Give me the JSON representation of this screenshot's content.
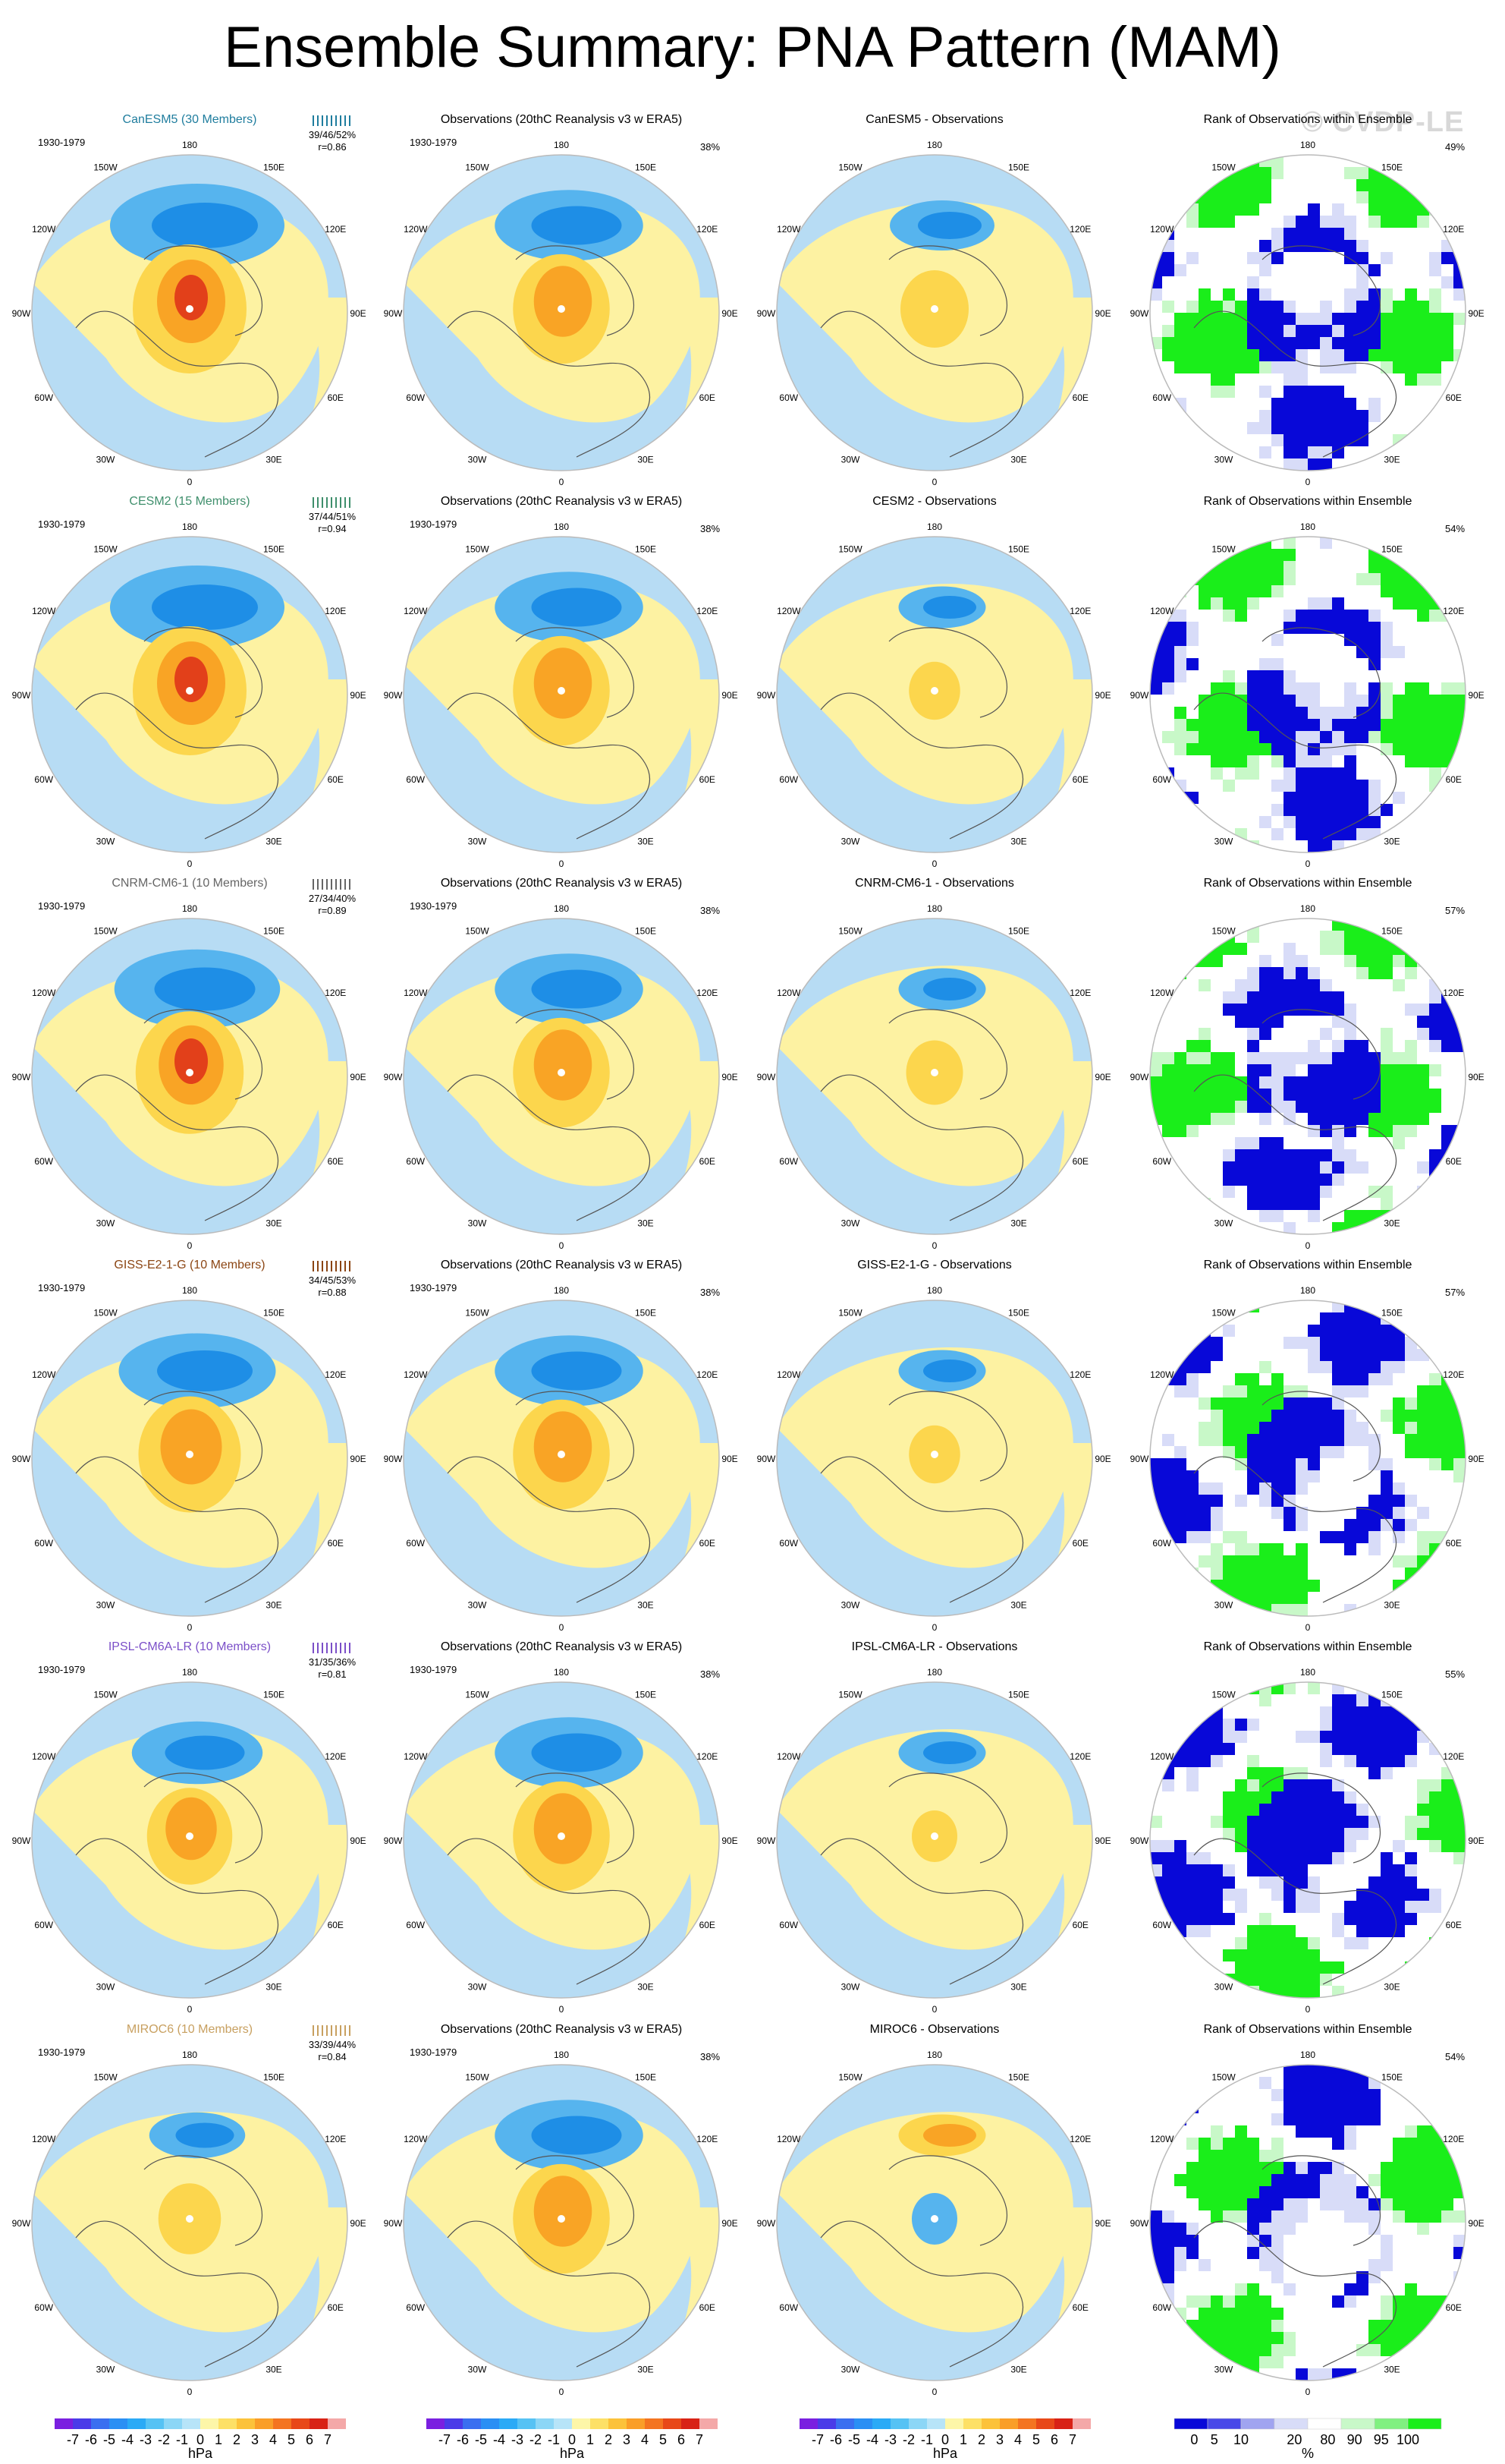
{
  "title": "Ensemble Summary: PNA Pattern (MAM)",
  "watermark": "© CVDP-LE",
  "period": "1930-1979",
  "colors": {
    "blue_dark": "#1e8ee6",
    "blue_mid": "#56b4ee",
    "blue_light": "#b7dcf4",
    "yellow_light": "#fdf2a2",
    "yellow_mid": "#fcd64d",
    "orange": "#f9a425",
    "orange_red": "#f2701e",
    "red": "#e2401a",
    "rank_blue": "#0808d8",
    "rank_lightblue": "#d8dcf8",
    "rank_green": "#1aee1a",
    "rank_lightgreen": "#c8f8c8",
    "map_border": "#bbbbbb"
  },
  "longitude_labels": [
    "180",
    "150E",
    "120E",
    "90E",
    "60E",
    "30E",
    "0",
    "30W",
    "60W",
    "90W",
    "120W",
    "150W"
  ],
  "columns": [
    {
      "key": "model"
    },
    {
      "key": "observations"
    },
    {
      "key": "difference"
    },
    {
      "key": "rank"
    }
  ],
  "chart_data": {
    "type": "map-panels",
    "title": "Ensemble Summary: PNA Pattern (MAM)",
    "period": "1930-1979",
    "observations_title": "Observations (20thC Reanalysis v3 w ERA5)",
    "observations_percent": "38%",
    "rank_title": "Rank of Observations within Ensemble",
    "rows": [
      {
        "model": "CanESM5",
        "model_title": "CanESM5 (30 Members)",
        "model_title_color": "#1f7d9e",
        "stats": "39/46/52%",
        "r": "r=0.86",
        "diff_title": "CanESM5 - Observations",
        "rank_percent": "49%",
        "strength": 1.0,
        "diff_strength": 0.6,
        "rank_seed": 11
      },
      {
        "model": "CESM2",
        "model_title": "CESM2 (15 Members)",
        "model_title_color": "#3f8f6c",
        "stats": "37/44/51%",
        "r": "r=0.94",
        "diff_title": "CESM2 - Observations",
        "rank_percent": "54%",
        "strength": 1.0,
        "diff_strength": 0.45,
        "rank_seed": 23
      },
      {
        "model": "CNRM-CM6-1",
        "model_title": "CNRM-CM6-1 (10 Members)",
        "model_title_color": "#666666",
        "stats": "27/34/40%",
        "r": "r=0.89",
        "diff_title": "CNRM-CM6-1 - Observations",
        "rank_percent": "57%",
        "strength": 0.95,
        "diff_strength": 0.5,
        "rank_seed": 37
      },
      {
        "model": "GISS-E2-1-G",
        "model_title": "GISS-E2-1-G (10 Members)",
        "model_title_color": "#8b4513",
        "stats": "34/45/53%",
        "r": "r=0.88",
        "diff_title": "GISS-E2-1-G - Observations",
        "rank_percent": "57%",
        "strength": 0.9,
        "diff_strength": 0.45,
        "rank_seed": 41
      },
      {
        "model": "IPSL-CM6A-LR",
        "model_title": "IPSL-CM6A-LR (10 Members)",
        "model_title_color": "#7b4fc8",
        "stats": "31/35/36%",
        "r": "r=0.81",
        "diff_title": "IPSL-CM6A-LR - Observations",
        "rank_percent": "55%",
        "strength": 0.75,
        "diff_strength": 0.4,
        "rank_seed": 53
      },
      {
        "model": "MIROC6",
        "model_title": "MIROC6 (10 Members)",
        "model_title_color": "#c8a060",
        "stats": "33/39/44%",
        "r": "r=0.84",
        "diff_title": "MIROC6 - Observations",
        "rank_percent": "54%",
        "strength": 0.55,
        "diff_strength": -0.4,
        "rank_seed": 67
      }
    ],
    "colorbar_hpa": {
      "ticks": [
        "-7",
        "-6",
        "-5",
        "-4",
        "-3",
        "-2",
        "-1",
        "0",
        "1",
        "2",
        "3",
        "4",
        "5",
        "6",
        "7"
      ],
      "unit": "hPa",
      "colors": [
        "#7a1fe0",
        "#4a3be8",
        "#3a6ff0",
        "#2a8ff4",
        "#2aaaf6",
        "#56c2f4",
        "#8cd6f6",
        "#b7e4f8",
        "#fdf6a8",
        "#fde066",
        "#fcc23a",
        "#fa9e28",
        "#f47420",
        "#e84818",
        "#d82216",
        "#f4a8a8"
      ]
    },
    "colorbar_rank": {
      "ticks": [
        "0",
        "5",
        "10",
        "20",
        "80",
        "90",
        "95",
        "100"
      ],
      "unit": "%",
      "colors": [
        "#0808d8",
        "#4848e8",
        "#a0a4f0",
        "#d8dcf8",
        "#ffffff",
        "#c8f8c8",
        "#80f080",
        "#1aee1a"
      ]
    }
  }
}
